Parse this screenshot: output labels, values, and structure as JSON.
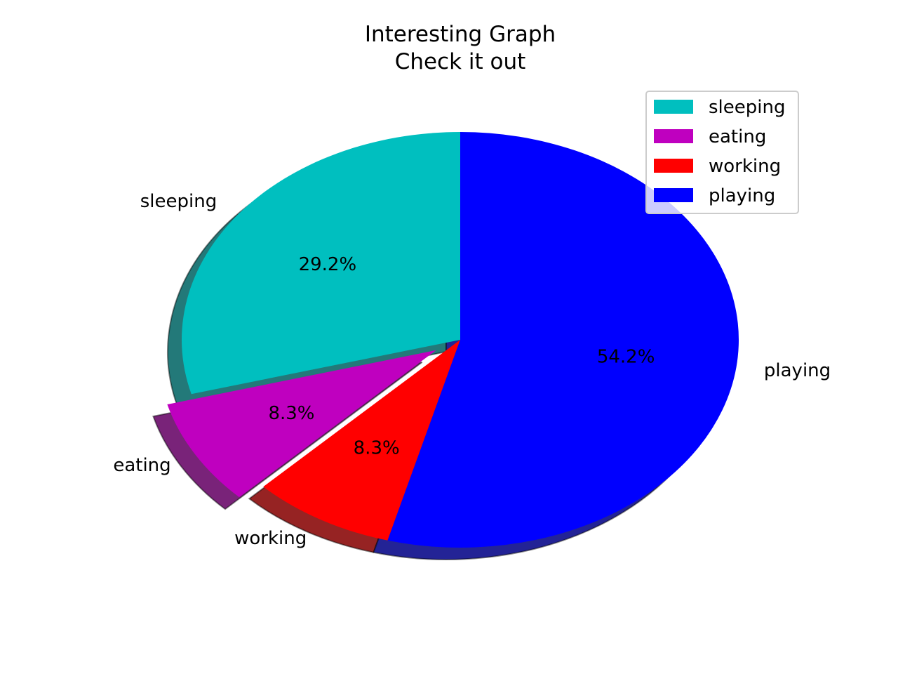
{
  "chart_data": {
    "type": "pie",
    "title": "Interesting Graph",
    "subtitle": "Check it out",
    "slices": [
      {
        "label": "sleeping",
        "value": 29.2,
        "pct_label": "29.2%",
        "color": "#00bfbf",
        "explode": false
      },
      {
        "label": "eating",
        "value": 8.3,
        "pct_label": "8.3%",
        "color": "#bf00bf",
        "explode": true
      },
      {
        "label": "working",
        "value": 8.3,
        "pct_label": "8.3%",
        "color": "#ff0000",
        "explode": false
      },
      {
        "label": "playing",
        "value": 54.2,
        "pct_label": "54.2%",
        "color": "#0000ff",
        "explode": false
      }
    ],
    "shadow": true,
    "legend_position": "top-right"
  }
}
